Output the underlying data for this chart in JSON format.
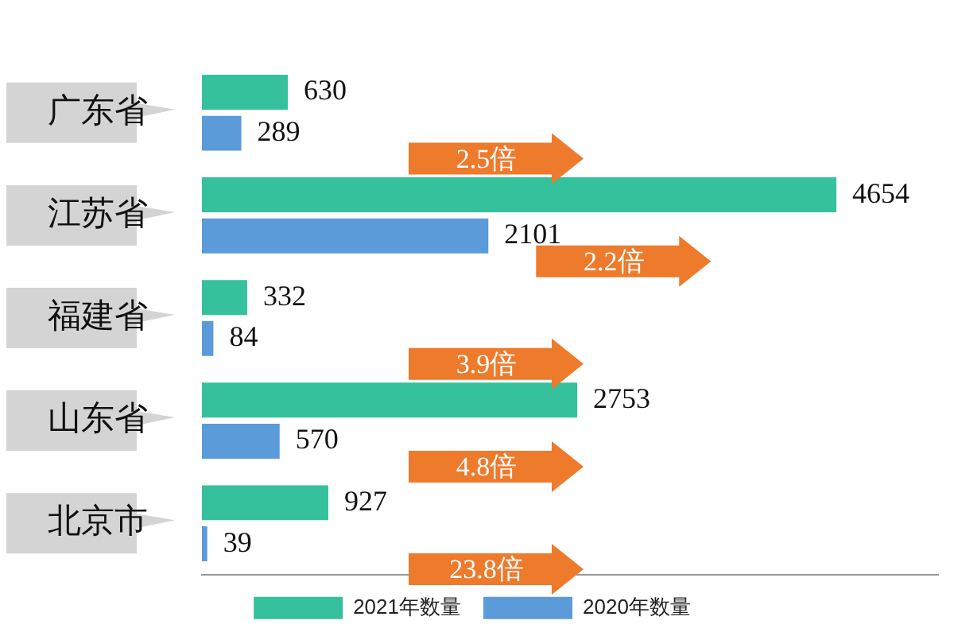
{
  "chart_data": {
    "type": "bar",
    "orientation": "horizontal",
    "categories": [
      "广东省",
      "江苏省",
      "福建省",
      "山东省",
      "北京市"
    ],
    "series": [
      {
        "name": "2021年数量",
        "color": "#34c19c",
        "values": [
          630,
          4654,
          332,
          2753,
          927
        ]
      },
      {
        "name": "2020年数量",
        "color": "#5b9bd9",
        "values": [
          289,
          2101,
          84,
          570,
          39
        ]
      }
    ],
    "xlim": [
      0,
      5400
    ],
    "data_labels": true,
    "legend": "bottom",
    "grid": false,
    "annotations": [
      "2.5倍",
      "2.2倍",
      "3.9倍",
      "4.8倍",
      "23.8倍"
    ]
  }
}
